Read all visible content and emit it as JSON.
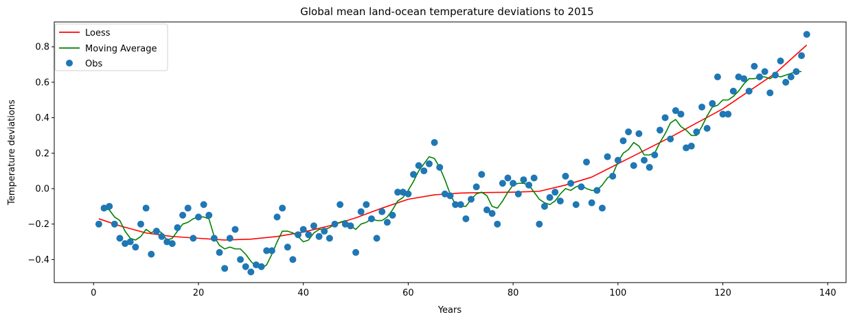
{
  "chart_data": {
    "type": "line",
    "title": "Global mean land-ocean temperature deviations to 2015",
    "xlabel": "Years",
    "ylabel": "Temperature deviations",
    "xlim": [
      -7.5,
      143.5
    ],
    "ylim": [
      -0.53,
      0.94
    ],
    "xticks": [
      0,
      20,
      40,
      60,
      80,
      100,
      120,
      140
    ],
    "yticks": [
      -0.4,
      -0.2,
      0.0,
      0.2,
      0.4,
      0.6,
      0.8
    ],
    "ytick_labels": [
      "−0.4",
      "−0.2",
      "0.0",
      "0.2",
      "0.4",
      "0.6",
      "0.8"
    ],
    "grid": false,
    "legend_position": "top-left",
    "series": [
      {
        "name": "Loess",
        "kind": "line",
        "color": "#ff0000",
        "x": [
          1,
          5,
          10,
          15,
          20,
          25,
          30,
          35,
          40,
          45,
          50,
          55,
          60,
          65,
          70,
          75,
          80,
          85,
          90,
          95,
          100,
          105,
          110,
          115,
          120,
          125,
          130,
          136
        ],
        "y": [
          -0.17,
          -0.21,
          -0.25,
          -0.27,
          -0.28,
          -0.29,
          -0.285,
          -0.27,
          -0.245,
          -0.21,
          -0.165,
          -0.11,
          -0.06,
          -0.035,
          -0.025,
          -0.022,
          -0.02,
          -0.015,
          0.02,
          0.065,
          0.14,
          0.215,
          0.29,
          0.37,
          0.45,
          0.55,
          0.65,
          0.81
        ]
      },
      {
        "name": "Moving Average",
        "kind": "line",
        "color": "#008000",
        "x": [
          2,
          3,
          4,
          5,
          6,
          7,
          8,
          9,
          10,
          11,
          12,
          13,
          14,
          15,
          16,
          17,
          18,
          19,
          20,
          21,
          22,
          23,
          24,
          25,
          26,
          27,
          28,
          29,
          30,
          31,
          32,
          33,
          34,
          35,
          36,
          37,
          38,
          39,
          40,
          41,
          42,
          43,
          44,
          45,
          46,
          47,
          48,
          49,
          50,
          51,
          52,
          53,
          54,
          55,
          56,
          57,
          58,
          59,
          60,
          61,
          62,
          63,
          64,
          65,
          66,
          67,
          68,
          69,
          70,
          71,
          72,
          73,
          74,
          75,
          76,
          77,
          78,
          79,
          80,
          81,
          82,
          83,
          84,
          85,
          86,
          87,
          88,
          89,
          90,
          91,
          92,
          93,
          94,
          95,
          96,
          97,
          98,
          99,
          100,
          101,
          102,
          103,
          104,
          105,
          106,
          107,
          108,
          109,
          110,
          111,
          112,
          113,
          114,
          115,
          116,
          117,
          118,
          119,
          120,
          121,
          122,
          123,
          124,
          125,
          126,
          127,
          128,
          129,
          130,
          131,
          132,
          133,
          134,
          135
        ],
        "y": [
          -0.11,
          -0.12,
          -0.16,
          -0.18,
          -0.24,
          -0.28,
          -0.29,
          -0.27,
          -0.23,
          -0.25,
          -0.23,
          -0.25,
          -0.29,
          -0.28,
          -0.24,
          -0.2,
          -0.19,
          -0.17,
          -0.16,
          -0.16,
          -0.17,
          -0.27,
          -0.32,
          -0.34,
          -0.33,
          -0.34,
          -0.34,
          -0.37,
          -0.41,
          -0.44,
          -0.45,
          -0.43,
          -0.37,
          -0.3,
          -0.24,
          -0.24,
          -0.25,
          -0.27,
          -0.3,
          -0.29,
          -0.25,
          -0.23,
          -0.23,
          -0.22,
          -0.2,
          -0.19,
          -0.18,
          -0.21,
          -0.23,
          -0.2,
          -0.19,
          -0.17,
          -0.18,
          -0.18,
          -0.16,
          -0.12,
          -0.07,
          -0.05,
          -0.01,
          0.04,
          0.1,
          0.14,
          0.18,
          0.17,
          0.12,
          0.05,
          -0.03,
          -0.09,
          -0.1,
          -0.1,
          -0.06,
          -0.03,
          -0.02,
          -0.04,
          -0.1,
          -0.11,
          -0.07,
          -0.02,
          0.02,
          0.03,
          0.03,
          0.02,
          -0.02,
          -0.06,
          -0.08,
          -0.09,
          -0.07,
          -0.03,
          0.0,
          -0.01,
          0.01,
          0.02,
          0.0,
          -0.01,
          -0.01,
          0.02,
          0.06,
          0.08,
          0.15,
          0.2,
          0.22,
          0.26,
          0.24,
          0.19,
          0.19,
          0.2,
          0.26,
          0.31,
          0.37,
          0.39,
          0.35,
          0.33,
          0.3,
          0.3,
          0.35,
          0.41,
          0.46,
          0.47,
          0.5,
          0.5,
          0.52,
          0.55,
          0.59,
          0.62,
          0.62,
          0.63,
          0.63,
          0.62,
          0.64,
          0.63,
          0.64,
          0.65,
          0.66,
          0.66
        ]
      },
      {
        "name": "Obs",
        "kind": "scatter",
        "color": "#1f77b4",
        "x": [
          1,
          2,
          3,
          4,
          5,
          6,
          7,
          8,
          9,
          10,
          11,
          12,
          13,
          14,
          15,
          16,
          17,
          18,
          19,
          20,
          21,
          22,
          23,
          24,
          25,
          26,
          27,
          28,
          29,
          30,
          31,
          32,
          33,
          34,
          35,
          36,
          37,
          38,
          39,
          40,
          41,
          42,
          43,
          44,
          45,
          46,
          47,
          48,
          49,
          50,
          51,
          52,
          53,
          54,
          55,
          56,
          57,
          58,
          59,
          60,
          61,
          62,
          63,
          64,
          65,
          66,
          67,
          68,
          69,
          70,
          71,
          72,
          73,
          74,
          75,
          76,
          77,
          78,
          79,
          80,
          81,
          82,
          83,
          84,
          85,
          86,
          87,
          88,
          89,
          90,
          91,
          92,
          93,
          94,
          95,
          96,
          97,
          98,
          99,
          100,
          101,
          102,
          103,
          104,
          105,
          106,
          107,
          108,
          109,
          110,
          111,
          112,
          113,
          114,
          115,
          116,
          117,
          118,
          119,
          120,
          121,
          122,
          123,
          124,
          125,
          126,
          127,
          128,
          129,
          130,
          131,
          132,
          133,
          134,
          135,
          136
        ],
        "y": [
          -0.2,
          -0.11,
          -0.1,
          -0.2,
          -0.28,
          -0.31,
          -0.3,
          -0.33,
          -0.2,
          -0.11,
          -0.37,
          -0.24,
          -0.27,
          -0.3,
          -0.31,
          -0.22,
          -0.15,
          -0.11,
          -0.28,
          -0.16,
          -0.09,
          -0.15,
          -0.28,
          -0.36,
          -0.45,
          -0.28,
          -0.23,
          -0.4,
          -0.44,
          -0.47,
          -0.43,
          -0.44,
          -0.35,
          -0.35,
          -0.16,
          -0.11,
          -0.33,
          -0.4,
          -0.26,
          -0.23,
          -0.26,
          -0.21,
          -0.27,
          -0.24,
          -0.28,
          -0.2,
          -0.09,
          -0.2,
          -0.21,
          -0.36,
          -0.13,
          -0.09,
          -0.17,
          -0.28,
          -0.13,
          -0.19,
          -0.15,
          -0.02,
          -0.02,
          -0.03,
          0.08,
          0.13,
          0.1,
          0.14,
          0.26,
          0.12,
          -0.03,
          -0.04,
          -0.09,
          -0.09,
          -0.17,
          -0.06,
          0.01,
          0.08,
          -0.12,
          -0.14,
          -0.2,
          0.03,
          0.06,
          0.03,
          -0.03,
          0.05,
          0.02,
          0.06,
          -0.2,
          -0.1,
          -0.05,
          -0.02,
          -0.07,
          0.07,
          0.03,
          -0.09,
          0.01,
          0.15,
          -0.08,
          -0.01,
          -0.11,
          0.18,
          0.07,
          0.16,
          0.27,
          0.32,
          0.13,
          0.31,
          0.16,
          0.12,
          0.19,
          0.33,
          0.4,
          0.28,
          0.44,
          0.42,
          0.23,
          0.24,
          0.32,
          0.46,
          0.34,
          0.48,
          0.63,
          0.42,
          0.42,
          0.55,
          0.63,
          0.62,
          0.55,
          0.69,
          0.63,
          0.66,
          0.54,
          0.64,
          0.72,
          0.6,
          0.63,
          0.66,
          0.75,
          0.87
        ]
      }
    ]
  }
}
